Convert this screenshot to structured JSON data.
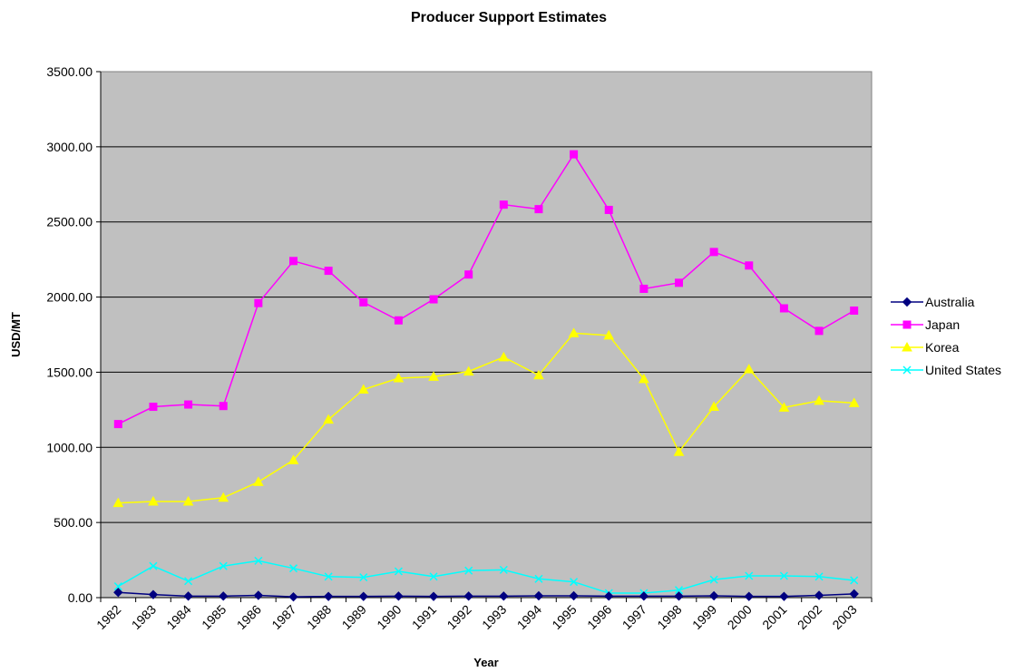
{
  "chart_data": {
    "type": "line",
    "title": "Producer Support Estimates",
    "xlabel": "Year",
    "ylabel": "USD/MT",
    "ylim": [
      0,
      3500
    ],
    "yticks": [
      "0.00",
      "500.00",
      "1000.00",
      "1500.00",
      "2000.00",
      "2500.00",
      "3000.00",
      "3500.00"
    ],
    "grid": true,
    "legend_position": "right",
    "categories": [
      "1982",
      "1983",
      "1984",
      "1985",
      "1986",
      "1987",
      "1988",
      "1989",
      "1990",
      "1991",
      "1992",
      "1993",
      "1994",
      "1995",
      "1996",
      "1997",
      "1998",
      "1999",
      "2000",
      "2001",
      "2002",
      "2003"
    ],
    "series": [
      {
        "name": "Australia",
        "color": "#000080",
        "marker": "diamond",
        "values": [
          35,
          20,
          10,
          10,
          15,
          5,
          8,
          8,
          10,
          8,
          10,
          10,
          12,
          12,
          10,
          10,
          10,
          12,
          8,
          8,
          15,
          25
        ]
      },
      {
        "name": "Japan",
        "color": "#ff00ff",
        "marker": "square",
        "values": [
          1155,
          1270,
          1285,
          1275,
          1960,
          2240,
          2175,
          1965,
          1845,
          1985,
          2150,
          2615,
          2585,
          2950,
          2580,
          2055,
          2095,
          2300,
          2210,
          1925,
          1775,
          1910
        ]
      },
      {
        "name": "Korea",
        "color": "#ffff00",
        "marker": "triangle",
        "values": [
          630,
          640,
          640,
          665,
          770,
          915,
          1185,
          1385,
          1460,
          1470,
          1505,
          1600,
          1480,
          1760,
          1745,
          1455,
          970,
          1270,
          1520,
          1265,
          1310,
          1295
        ]
      },
      {
        "name": "United States",
        "color": "#00ffff",
        "marker": "x",
        "values": [
          75,
          210,
          110,
          210,
          245,
          195,
          140,
          135,
          175,
          140,
          180,
          185,
          125,
          105,
          30,
          30,
          50,
          120,
          145,
          145,
          140,
          115
        ]
      }
    ],
    "plot_background": "#c0c0c0"
  }
}
